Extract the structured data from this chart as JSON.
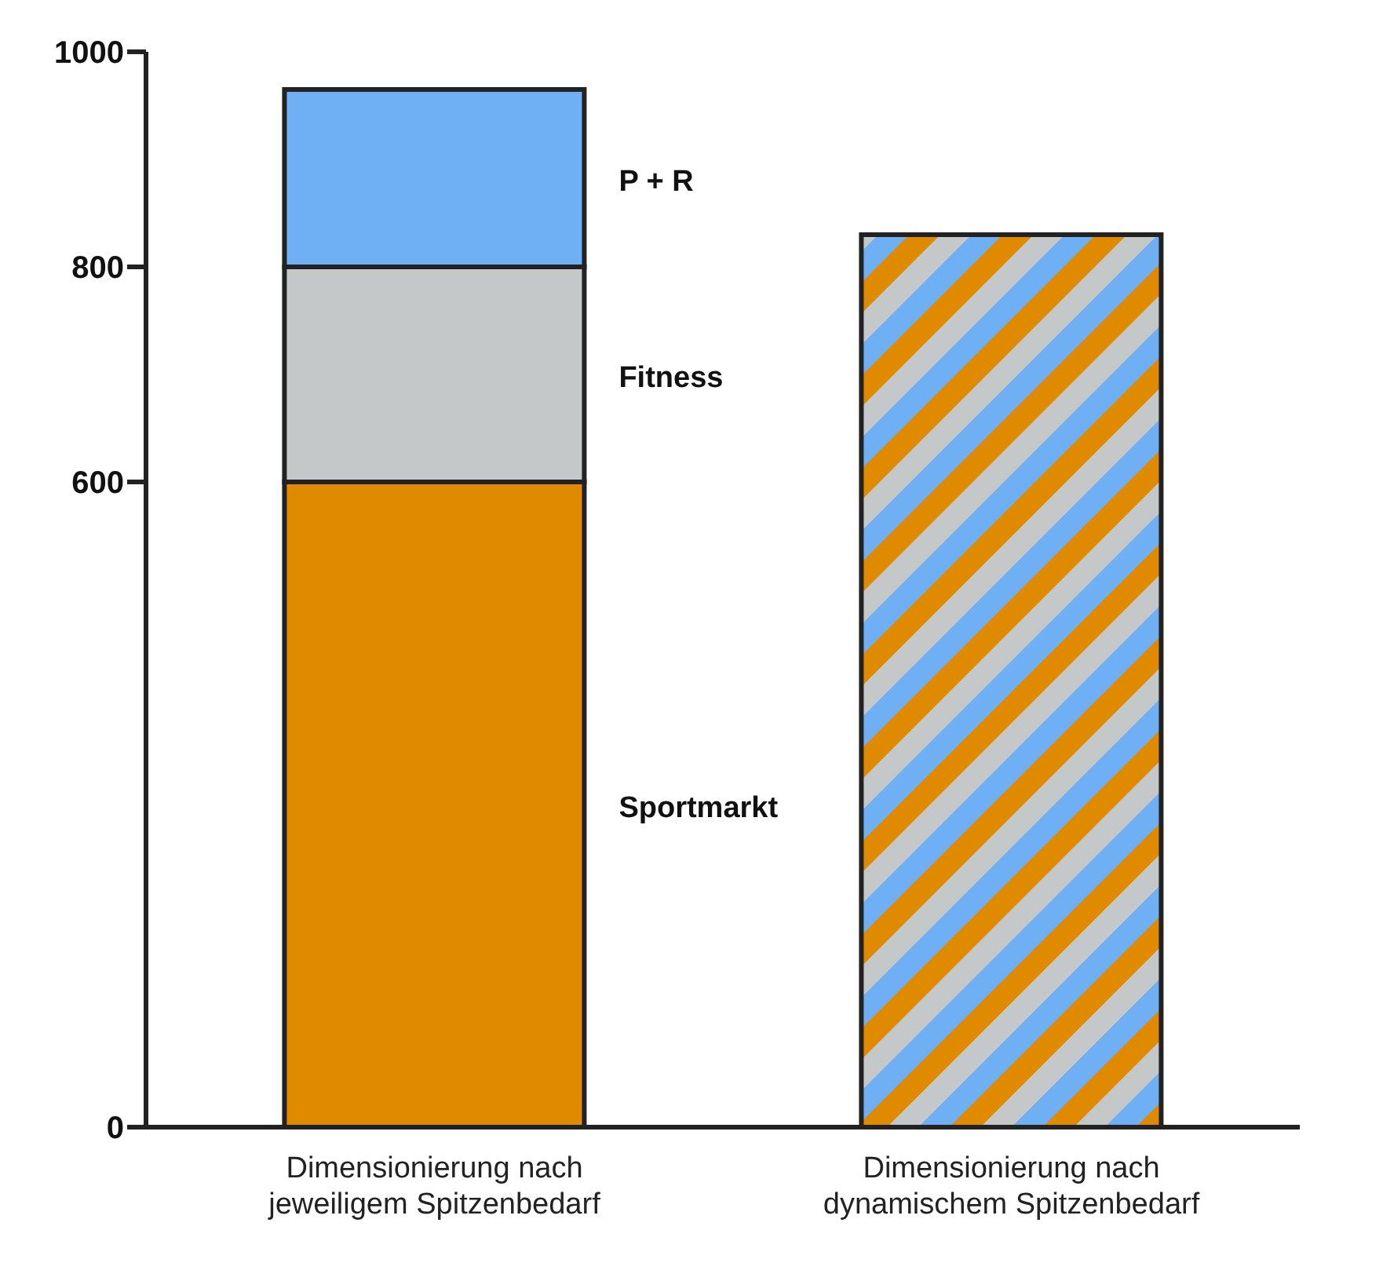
{
  "chart_data": {
    "type": "bar",
    "stacked": true,
    "categories": [
      "Dimensionierung nach jeweiligem Spitzenbedarf",
      "Dimensionierung nach dynamischem Spitzenbedarf"
    ],
    "series": [
      {
        "name": "Sportmarkt",
        "color": "#e08a00",
        "values": [
          600,
          null
        ]
      },
      {
        "name": "Fitness",
        "color": "#c4c8c8",
        "values": [
          200,
          null
        ]
      },
      {
        "name": "P + R",
        "color": "#6fb0f5",
        "values": [
          165,
          null
        ]
      },
      {
        "values": [
          null,
          830
        ]
      }
    ],
    "ylim": [
      0,
      1000
    ],
    "yticks": [
      0,
      600,
      800,
      1000
    ],
    "grid": false
  }
}
